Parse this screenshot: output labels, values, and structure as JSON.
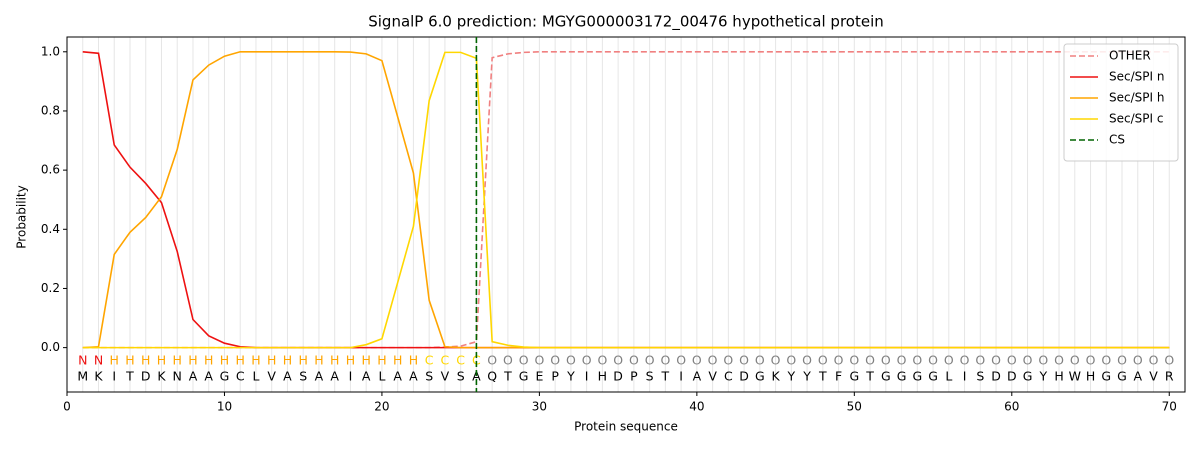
{
  "chart_data": {
    "type": "line",
    "title": "SignalP 6.0 prediction: MGYG000003172_00476 hypothetical protein",
    "xlabel": "Protein sequence",
    "ylabel": "Probability",
    "xlim": [
      0,
      71
    ],
    "ylim": [
      -0.15,
      1.05
    ],
    "xticks": [
      0,
      10,
      20,
      30,
      40,
      50,
      60,
      70
    ],
    "yticks": [
      {
        "value": 0,
        "label": "0.0"
      },
      0.2,
      0.4,
      0.6,
      0.8,
      {
        "value": 1,
        "label": "1.0"
      }
    ],
    "grid": true,
    "legend": "upper right",
    "x": [
      1,
      2,
      3,
      4,
      5,
      6,
      7,
      8,
      9,
      10,
      11,
      12,
      13,
      14,
      15,
      16,
      17,
      18,
      19,
      20,
      21,
      22,
      23,
      24,
      25,
      26,
      27,
      28,
      29,
      30,
      31,
      32,
      33,
      34,
      35,
      36,
      37,
      38,
      39,
      40,
      41,
      42,
      43,
      44,
      45,
      46,
      47,
      48,
      49,
      50,
      51,
      52,
      53,
      54,
      55,
      56,
      57,
      58,
      59,
      60,
      61,
      62,
      63,
      64,
      65,
      66,
      67,
      68,
      69,
      70
    ],
    "series": [
      {
        "name": "OTHER",
        "color": "#f08080",
        "linestyle": "dashed",
        "values": [
          0,
          0,
          0,
          0,
          0,
          0,
          0,
          0,
          0,
          0,
          0,
          0,
          0,
          0,
          0,
          0,
          0,
          0,
          0,
          0,
          0,
          0,
          0,
          0.002,
          0.005,
          0.02,
          0.98,
          0.993,
          0.998,
          1,
          1,
          1,
          1,
          1,
          1,
          1,
          1,
          1,
          1,
          1,
          1,
          1,
          1,
          1,
          1,
          1,
          1,
          1,
          1,
          1,
          1,
          1,
          1,
          1,
          1,
          1,
          1,
          1,
          1,
          1,
          1,
          1,
          1,
          1,
          1,
          1,
          1,
          1,
          1,
          1
        ]
      },
      {
        "name": "Sec/SPI n",
        "color": "#ee1111",
        "linestyle": "solid",
        "values": [
          1.0,
          0.995,
          0.685,
          0.61,
          0.555,
          0.49,
          0.325,
          0.095,
          0.04,
          0.015,
          0.003,
          0,
          0,
          0,
          0,
          0,
          0,
          0,
          0,
          0,
          0,
          0,
          0,
          0,
          0,
          0,
          0,
          0,
          0,
          0,
          0,
          0,
          0,
          0,
          0,
          0,
          0,
          0,
          0,
          0,
          0,
          0,
          0,
          0,
          0,
          0,
          0,
          0,
          0,
          0,
          0,
          0,
          0,
          0,
          0,
          0,
          0,
          0,
          0,
          0,
          0,
          0,
          0,
          0,
          0,
          0,
          0,
          0,
          0,
          0
        ]
      },
      {
        "name": "Sec/SPI h",
        "color": "#ffa500",
        "linestyle": "solid",
        "values": [
          0,
          0.003,
          0.315,
          0.39,
          0.44,
          0.51,
          0.67,
          0.905,
          0.955,
          0.985,
          1,
          1,
          1,
          1,
          1,
          1,
          1,
          0.999,
          0.993,
          0.97,
          0.78,
          0.59,
          0.16,
          0.003,
          0,
          0,
          0,
          0,
          0,
          0,
          0,
          0,
          0,
          0,
          0,
          0,
          0,
          0,
          0,
          0,
          0,
          0,
          0,
          0,
          0,
          0,
          0,
          0,
          0,
          0,
          0,
          0,
          0,
          0,
          0,
          0,
          0,
          0,
          0,
          0,
          0,
          0,
          0,
          0,
          0,
          0,
          0,
          0,
          0,
          0
        ]
      },
      {
        "name": "Sec/SPI c",
        "color": "#ffd700",
        "linestyle": "solid",
        "values": [
          0,
          0,
          0,
          0,
          0,
          0,
          0,
          0,
          0,
          0,
          0,
          0,
          0,
          0,
          0,
          0,
          0,
          0,
          0.01,
          0.03,
          0.22,
          0.41,
          0.835,
          0.998,
          0.998,
          0.978,
          0.02,
          0.008,
          0.002,
          0,
          0,
          0,
          0,
          0,
          0,
          0,
          0,
          0,
          0,
          0,
          0,
          0,
          0,
          0,
          0,
          0,
          0,
          0,
          0,
          0,
          0,
          0,
          0,
          0,
          0,
          0,
          0,
          0,
          0,
          0,
          0,
          0,
          0,
          0,
          0,
          0,
          0,
          0,
          0,
          0
        ]
      }
    ],
    "cs": {
      "name": "CS",
      "x": 26,
      "color": "#006400",
      "linestyle": "dashed"
    },
    "sequence": [
      "M",
      "K",
      "I",
      "T",
      "D",
      "K",
      "N",
      "A",
      "A",
      "G",
      "C",
      "L",
      "V",
      "A",
      "S",
      "A",
      "A",
      "I",
      "A",
      "L",
      "A",
      "A",
      "S",
      "V",
      "S",
      "A",
      "Q",
      "T",
      "G",
      "E",
      "P",
      "Y",
      "I",
      "H",
      "D",
      "P",
      "S",
      "T",
      "I",
      "A",
      "V",
      "C",
      "D",
      "G",
      "K",
      "Y",
      "Y",
      "T",
      "F",
      "G",
      "T",
      "G",
      "G",
      "G",
      "G",
      "L",
      "I",
      "S",
      "D",
      "D",
      "G",
      "Y",
      "H",
      "W",
      "H",
      "G",
      "G",
      "A",
      "V",
      "R"
    ],
    "region_labels": [
      "N",
      "N",
      "H",
      "H",
      "H",
      "H",
      "H",
      "H",
      "H",
      "H",
      "H",
      "H",
      "H",
      "H",
      "H",
      "H",
      "H",
      "H",
      "H",
      "H",
      "H",
      "H",
      "C",
      "C",
      "C",
      "C",
      "O",
      "O",
      "O",
      "O",
      "O",
      "O",
      "O",
      "O",
      "O",
      "O",
      "O",
      "O",
      "O",
      "O",
      "O",
      "O",
      "O",
      "O",
      "O",
      "O",
      "O",
      "O",
      "O",
      "O",
      "O",
      "O",
      "O",
      "O",
      "O",
      "O",
      "O",
      "O",
      "O",
      "O",
      "O",
      "O",
      "O",
      "O",
      "O",
      "O",
      "O",
      "O",
      "O",
      "O"
    ],
    "region_colors": {
      "N": "#ee1111",
      "H": "#ffa500",
      "C": "#ffd700",
      "O": "#808080"
    }
  }
}
